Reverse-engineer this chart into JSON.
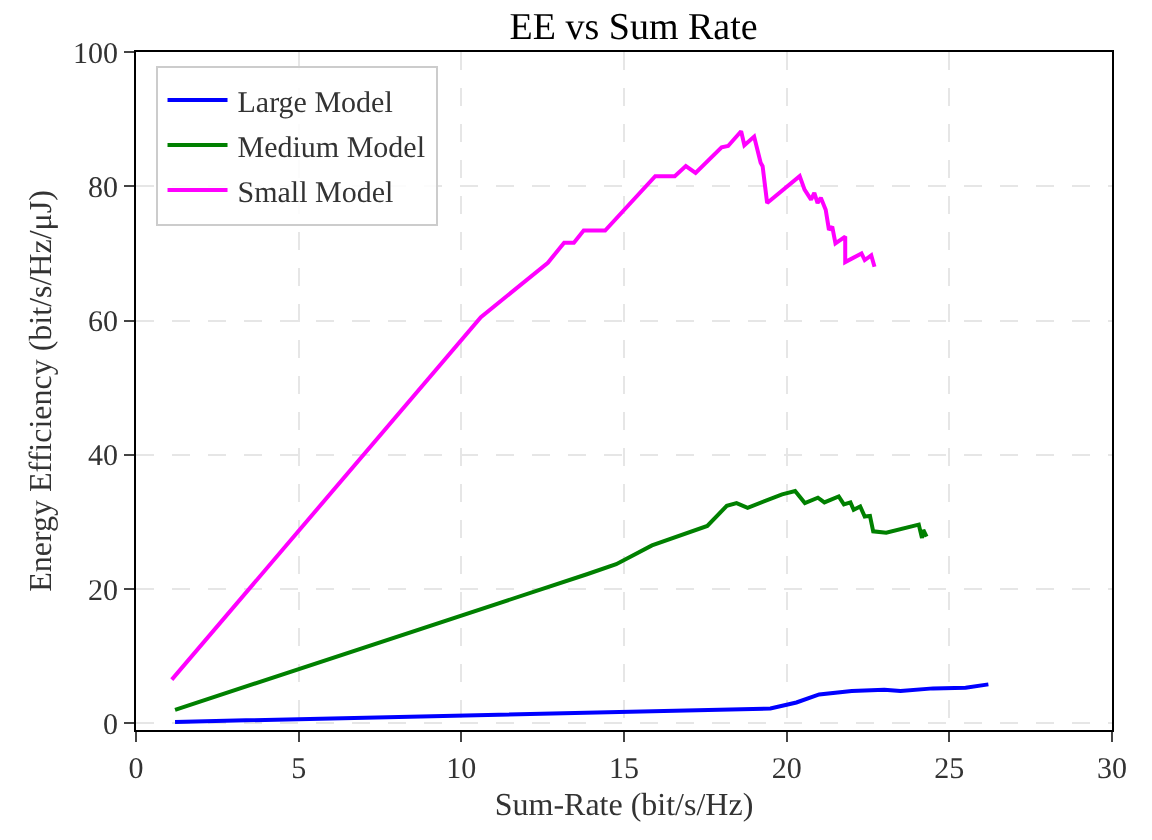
{
  "chart_data": {
    "type": "line",
    "title": "EE vs Sum Rate",
    "xlabel": "Sum-Rate (bit/s/Hz)",
    "ylabel": "Energy Efficiency (bit/s/Hz/μJ)",
    "xlim": [
      0,
      30
    ],
    "xticks": [
      0,
      5,
      10,
      15,
      20,
      25,
      30
    ],
    "ylim": [
      -1,
      100
    ],
    "yticks": [
      0,
      20,
      40,
      60,
      80,
      100
    ],
    "grid": true,
    "legend": "top left",
    "line_style": "solid",
    "series": [
      {
        "name": "Large Model",
        "color": "#0000ff",
        "x": [
          1.2,
          19.5,
          20.3,
          21.0,
          22.0,
          23.0,
          23.5,
          24.5,
          25.5,
          26.2
        ],
        "values": [
          0.2,
          2.2,
          3.1,
          4.3,
          4.8,
          5.0,
          4.8,
          5.2,
          5.3,
          5.8
        ]
      },
      {
        "name": "Medium Model",
        "color": "#008000",
        "x": [
          1.2,
          13.86,
          14.76,
          15.86,
          17.56,
          18.16,
          18.46,
          18.8,
          19.86,
          20.26,
          20.56,
          20.96,
          21.16,
          21.6,
          21.76,
          21.96,
          22.06,
          22.26,
          22.4,
          22.56,
          22.66,
          23.06,
          24.06,
          24.16,
          24.2,
          24.3
        ],
        "values": [
          2.0,
          22.2,
          23.7,
          26.5,
          29.4,
          32.4,
          32.8,
          32.1,
          34.1,
          34.6,
          32.8,
          33.6,
          32.9,
          33.8,
          32.6,
          32.9,
          31.8,
          32.3,
          30.8,
          30.9,
          28.6,
          28.4,
          29.6,
          27.6,
          28.8,
          27.8
        ]
      },
      {
        "name": "Small Model",
        "color": "#ff00ff",
        "x": [
          1.1,
          10.6,
          12.66,
          13.16,
          13.46,
          13.76,
          14.42,
          15.96,
          16.56,
          16.9,
          17.2,
          18.0,
          18.2,
          18.6,
          18.7,
          19.0,
          19.2,
          19.26,
          19.4,
          20.4,
          20.55,
          20.75,
          20.85,
          20.95,
          21.05,
          21.2,
          21.3,
          21.4,
          21.5,
          21.8,
          21.8,
          22.3,
          22.4,
          22.6,
          22.7
        ],
        "values": [
          6.5,
          60.5,
          68.6,
          71.6,
          71.6,
          73.4,
          73.4,
          81.5,
          81.5,
          83,
          82,
          85.8,
          86,
          88.2,
          86.1,
          87.4,
          83.5,
          83.0,
          77.5,
          81.5,
          79.5,
          78,
          79,
          77.5,
          78.3,
          76.5,
          73.5,
          74,
          71.5,
          72.5,
          68.7,
          70,
          69,
          69.7,
          68
        ]
      }
    ]
  }
}
